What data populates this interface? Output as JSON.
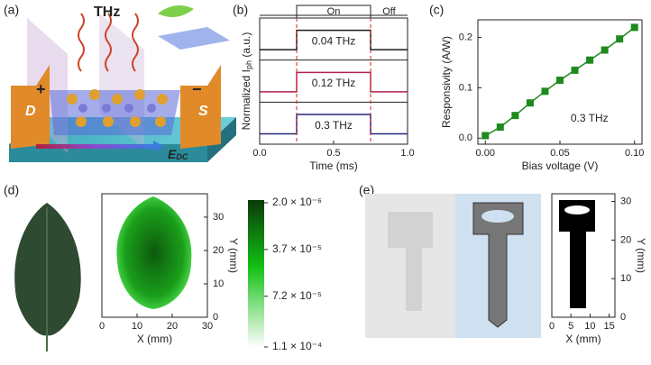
{
  "panel_labels": [
    "(a)",
    "(b)",
    "(c)",
    "(d)",
    "(e)"
  ],
  "panel_a": {
    "title": "THz",
    "plus": "+",
    "minus": "−",
    "drain": "D",
    "source": "S",
    "field": "E",
    "field_sub": "DC"
  },
  "chart_data": [
    {
      "type": "pulse",
      "xlabel": "Time (ms)",
      "ylabel": "Normalized I",
      "ylabel_sub": "ph",
      "ylabel_unit": " (a.u.)",
      "on_label": "On",
      "off_label": "Off",
      "switch_times": [
        0.25,
        0.75
      ],
      "xlim": [
        0,
        1
      ],
      "xticks": [
        {
          "value": 0,
          "label": "0.0"
        },
        {
          "value": 0.5,
          "label": "0.5"
        },
        {
          "value": 1,
          "label": "1.0"
        }
      ],
      "ylim": [
        -0.35,
        1.45
      ],
      "x": [
        0,
        0.25,
        0.25,
        0.75,
        0.75,
        1
      ],
      "series": [
        {
          "name": "0.04 THz",
          "color": "#1a1a1a",
          "values": [
            0,
            0,
            1,
            1,
            0,
            0
          ]
        },
        {
          "name": "0.12 THz",
          "color": "#b0224f",
          "values": [
            0,
            0,
            1,
            1,
            0,
            0
          ]
        },
        {
          "name": "0.3 THz",
          "color": "#23237e",
          "values": [
            0,
            0,
            1,
            1,
            0,
            0
          ]
        }
      ]
    },
    {
      "type": "line",
      "xlabel": "Bias voltage (V)",
      "ylabel": "Responsivity (A/W)",
      "annotation": "0.3 THz",
      "xlim": [
        -0.005,
        0.105
      ],
      "xticks": [
        {
          "value": 0,
          "label": "0.00"
        },
        {
          "value": 0.05,
          "label": "0.05"
        },
        {
          "value": 0.1,
          "label": "0.10"
        }
      ],
      "ylim": [
        -0.012,
        0.235
      ],
      "yticks": [
        {
          "value": 0,
          "label": "0.0"
        },
        {
          "value": 0.1,
          "label": "0.1"
        },
        {
          "value": 0.2,
          "label": "0.2"
        }
      ],
      "x": [
        0,
        0.01,
        0.02,
        0.03,
        0.04,
        0.05,
        0.06,
        0.07,
        0.08,
        0.09,
        0.1
      ],
      "values": [
        0.005,
        0.022,
        0.045,
        0.07,
        0.093,
        0.115,
        0.135,
        0.155,
        0.175,
        0.197,
        0.22
      ],
      "color": "#1e8a1e"
    },
    {
      "type": "image",
      "xlabel": "X (mm)",
      "ylabel": "Y (mm)",
      "xlim": [
        0,
        30
      ],
      "xticks": [
        0,
        10,
        20,
        30
      ],
      "ylim": [
        0,
        37
      ],
      "yticks": [
        0,
        10,
        20,
        30
      ],
      "clim": [
        0,
        0.00011
      ],
      "cticks": [
        {
          "value": 2e-06,
          "label": "2.0 × 10⁻⁶"
        },
        {
          "value": 3.7e-05,
          "label": "3.7 × 10⁻⁵"
        },
        {
          "value": 7.2e-05,
          "label": "7.2 × 10⁻⁵"
        },
        {
          "value": 0.00011,
          "label": "1.1 × 10⁻⁴"
        }
      ]
    },
    {
      "type": "image",
      "xlabel": "X (mm)",
      "ylabel": "Y (mm)",
      "xlim": [
        0,
        16.5
      ],
      "xticks": [
        0,
        5,
        10,
        15
      ],
      "ylim": [
        0,
        32
      ],
      "yticks": [
        0,
        10,
        20,
        30
      ]
    }
  ]
}
